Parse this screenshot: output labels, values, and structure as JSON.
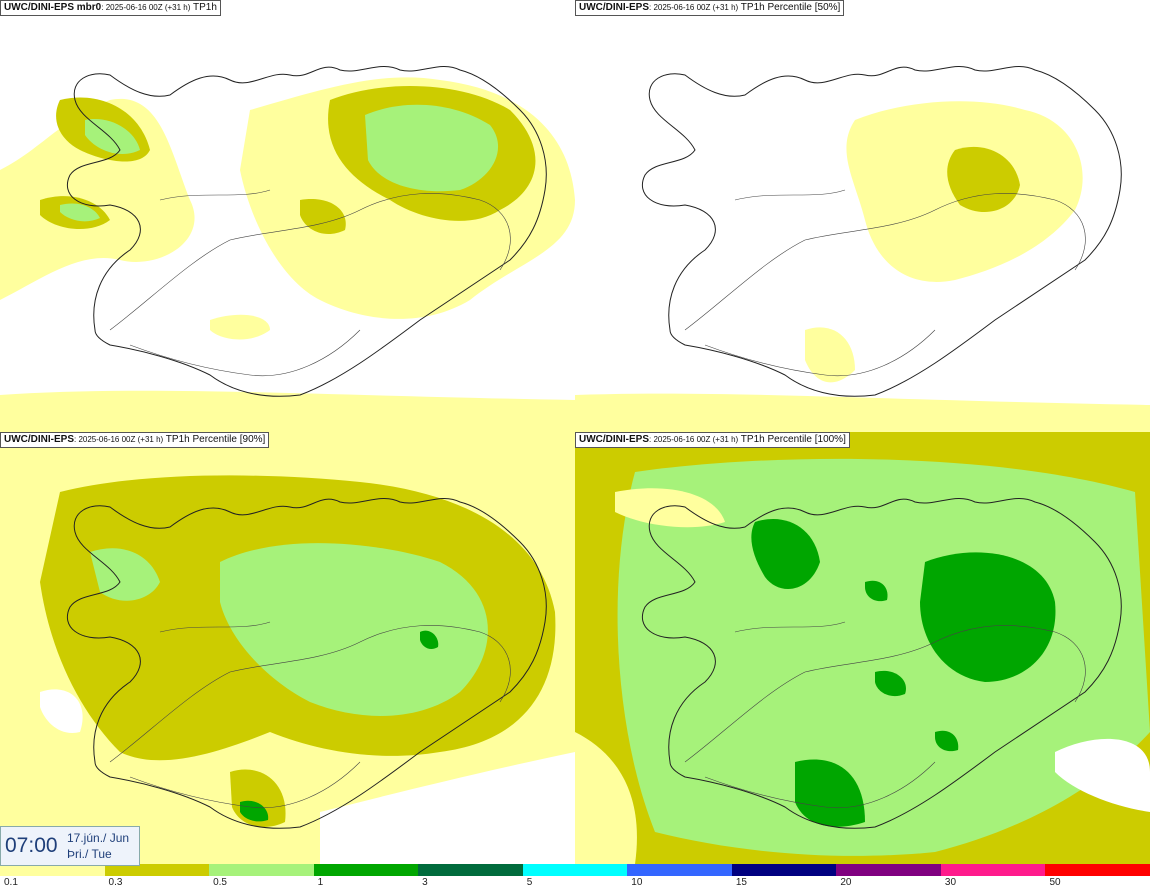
{
  "panels": [
    {
      "model": "UWC/DINI-EPS mbr0",
      "run": "2025-06-16 00Z (+31 h)",
      "field": "TP1h"
    },
    {
      "model": "UWC/DINI-EPS",
      "run": "2025-06-16 00Z (+31 h)",
      "field": "TP1h Percentile [50%]"
    },
    {
      "model": "UWC/DINI-EPS",
      "run": "2025-06-16 00Z (+31 h)",
      "field": "TP1h Percentile [90%]"
    },
    {
      "model": "UWC/DINI-EPS",
      "run": "2025-06-16 00Z (+31 h)",
      "field": "TP1h Percentile [100%]"
    }
  ],
  "valid_time": {
    "time": "07:00",
    "date_line": "17.jún./ Jun",
    "day_line": "Þri./ Tue"
  },
  "legend": {
    "levels": [
      "0.1",
      "0.3",
      "0.5",
      "1",
      "3",
      "5",
      "10",
      "15",
      "20",
      "30",
      "50"
    ],
    "colors": [
      "#ffff9e",
      "#cccc00",
      "#a6f27a",
      "#00a600",
      "#006b3c",
      "#00ffff",
      "#3366ff",
      "#000080",
      "#800080",
      "#ff1a8c",
      "#ff0000"
    ]
  }
}
